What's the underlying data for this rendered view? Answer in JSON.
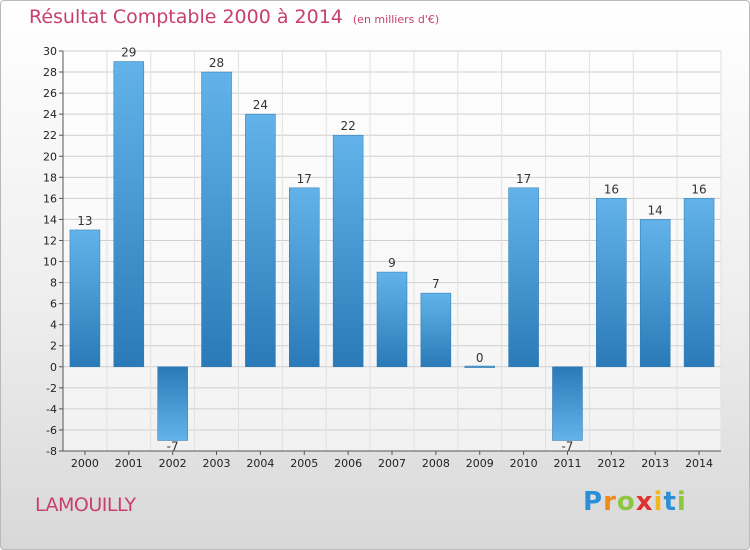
{
  "chart_data": {
    "type": "bar",
    "title": "Résultat Comptable 2000 à 2014",
    "subtitle": "(en milliers d'€)",
    "categories": [
      "2000",
      "2001",
      "2002",
      "2003",
      "2004",
      "2005",
      "2006",
      "2007",
      "2008",
      "2009",
      "2010",
      "2011",
      "2012",
      "2013",
      "2014"
    ],
    "values": [
      13,
      29,
      -7,
      28,
      24,
      17,
      22,
      9,
      7,
      0,
      17,
      -7,
      16,
      14,
      16
    ],
    "ylim": [
      -8,
      30
    ],
    "yticks": [
      30,
      28,
      26,
      24,
      22,
      20,
      18,
      16,
      14,
      12,
      10,
      8,
      6,
      4,
      2,
      0,
      -2,
      -4,
      -6,
      -8
    ],
    "grid": true,
    "bar_color_light": "#63b3ea",
    "bar_color_dark": "#2a7ab8"
  },
  "footer": {
    "commune": "LAMOUILLY",
    "logo_letters": [
      "P",
      "r",
      "o",
      "x",
      "i",
      "t",
      "i"
    ],
    "logo_colors": [
      "#2a8fd6",
      "#f08a1c",
      "#8dc63f",
      "#e2312d",
      "#f2b71b",
      "#2a8fd6",
      "#8dc63f"
    ]
  }
}
